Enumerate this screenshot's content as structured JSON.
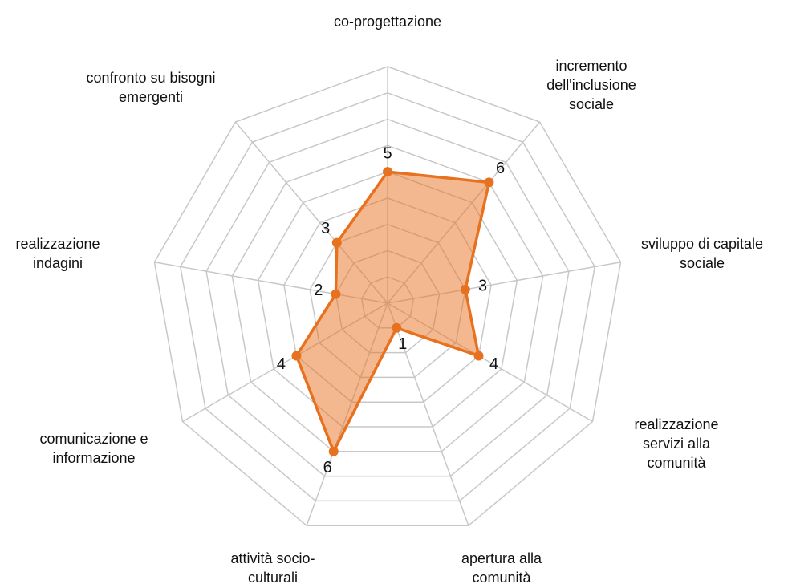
{
  "chart_data": {
    "type": "radar",
    "categories": [
      [
        "co-progettazione"
      ],
      [
        "incremento",
        "dell'inclusione",
        "sociale"
      ],
      [
        "sviluppo di capitale",
        "sociale"
      ],
      [
        "realizzazione",
        "servizi alla",
        "comunità"
      ],
      [
        "apertura alla",
        "comunità"
      ],
      [
        "attività socio-",
        "culturali"
      ],
      [
        "comunicazione e",
        "informazione"
      ],
      [
        "realizzazione",
        "indagini"
      ],
      [
        "confronto su bisogni",
        "emergenti"
      ]
    ],
    "values": [
      5,
      6,
      3,
      4,
      1,
      6,
      4,
      2,
      3
    ],
    "color": "#e8711f",
    "ylim": [
      0,
      9
    ],
    "yticks": [
      1,
      2,
      3,
      4,
      5,
      6,
      7,
      8,
      9
    ],
    "grid": true
  }
}
